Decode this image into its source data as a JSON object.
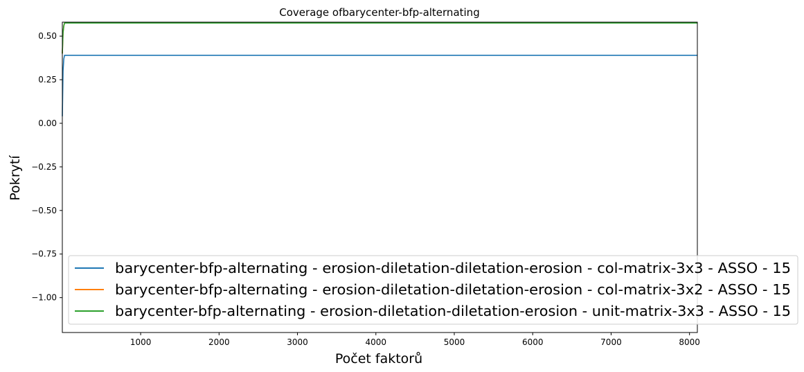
{
  "chart_data": {
    "type": "line",
    "title": "Coverage ofbarycenter-bfp-alternating",
    "xlabel": "Počet faktorů",
    "ylabel": "Pokrytí",
    "xlim": [
      1,
      8100
    ],
    "ylim": [
      -1.2,
      0.58
    ],
    "xticks": [
      1000,
      2000,
      3000,
      4000,
      5000,
      6000,
      7000,
      8000
    ],
    "yticks": [
      0.5,
      0.25,
      0.0,
      -0.25,
      -0.5,
      -0.75,
      -1.0
    ],
    "ytick_labels": [
      "0.50",
      "0.25",
      "0.00",
      "−0.25",
      "−0.50",
      "−0.75",
      "−1.00"
    ],
    "grid": false,
    "legend_position": "lower-right",
    "series": [
      {
        "name": "barycenter-bfp-alternating - erosion-diletation-diletation-erosion - col-matrix-3x3 - ASSO - 15",
        "color": "#1f77b4",
        "x": [
          1,
          10,
          20,
          30,
          8100
        ],
        "values": [
          0.04,
          0.3,
          0.37,
          0.39,
          0.39
        ]
      },
      {
        "name": "barycenter-bfp-alternating - erosion-diletation-diletation-erosion - col-matrix-3x2 - ASSO - 15",
        "color": "#ff7f0e",
        "x": [
          1,
          10,
          20,
          30,
          8100
        ],
        "values": [
          0.4,
          0.52,
          0.56,
          0.575,
          0.575
        ]
      },
      {
        "name": "barycenter-bfp-alternating - erosion-diletation-diletation-erosion - unit-matrix-3x3 - ASSO - 15",
        "color": "#2ca02c",
        "x": [
          1,
          10,
          20,
          30,
          8100
        ],
        "values": [
          0.4,
          0.52,
          0.56,
          0.575,
          0.575
        ]
      }
    ]
  }
}
